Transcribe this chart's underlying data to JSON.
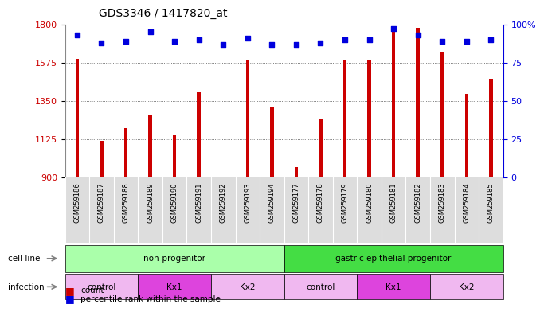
{
  "title": "GDS3346 / 1417820_at",
  "samples": [
    "GSM259186",
    "GSM259187",
    "GSM259188",
    "GSM259189",
    "GSM259190",
    "GSM259191",
    "GSM259192",
    "GSM259193",
    "GSM259194",
    "GSM259177",
    "GSM259178",
    "GSM259179",
    "GSM259180",
    "GSM259181",
    "GSM259182",
    "GSM259183",
    "GSM259184",
    "GSM259185"
  ],
  "counts": [
    1595,
    1115,
    1190,
    1270,
    1145,
    1405,
    895,
    1590,
    1310,
    960,
    1240,
    1590,
    1590,
    1790,
    1780,
    1640,
    1390,
    1480
  ],
  "percentiles": [
    93,
    88,
    89,
    95,
    89,
    90,
    87,
    91,
    87,
    87,
    88,
    90,
    90,
    97,
    93,
    89,
    89,
    90
  ],
  "ylim_left": [
    900,
    1800
  ],
  "ylim_right": [
    0,
    100
  ],
  "yticks_left": [
    900,
    1125,
    1350,
    1575,
    1800
  ],
  "yticks_right": [
    0,
    25,
    50,
    75,
    100
  ],
  "bar_color": "#cc0000",
  "dot_color": "#0000dd",
  "cell_line_groups": [
    {
      "label": "non-progenitor",
      "start": 0,
      "end": 9,
      "color": "#aaffaa"
    },
    {
      "label": "gastric epithelial progenitor",
      "start": 9,
      "end": 18,
      "color": "#44dd44"
    }
  ],
  "infection_groups": [
    {
      "label": "control",
      "start": 0,
      "end": 3,
      "color": "#f0b8f0"
    },
    {
      "label": "Kx1",
      "start": 3,
      "end": 6,
      "color": "#dd44dd"
    },
    {
      "label": "Kx2",
      "start": 6,
      "end": 9,
      "color": "#f0b8f0"
    },
    {
      "label": "control",
      "start": 9,
      "end": 12,
      "color": "#f0b8f0"
    },
    {
      "label": "Kx1",
      "start": 12,
      "end": 15,
      "color": "#dd44dd"
    },
    {
      "label": "Kx2",
      "start": 15,
      "end": 18,
      "color": "#f0b8f0"
    }
  ],
  "legend_count_label": "count",
  "legend_pct_label": "percentile rank within the sample",
  "background_color": "#ffffff",
  "grid_color": "#555555",
  "tick_label_color_left": "#cc0000",
  "tick_label_color_right": "#0000dd",
  "row_label_cell_line": "cell line",
  "row_label_infection": "infection",
  "xtick_bg": "#dddddd"
}
